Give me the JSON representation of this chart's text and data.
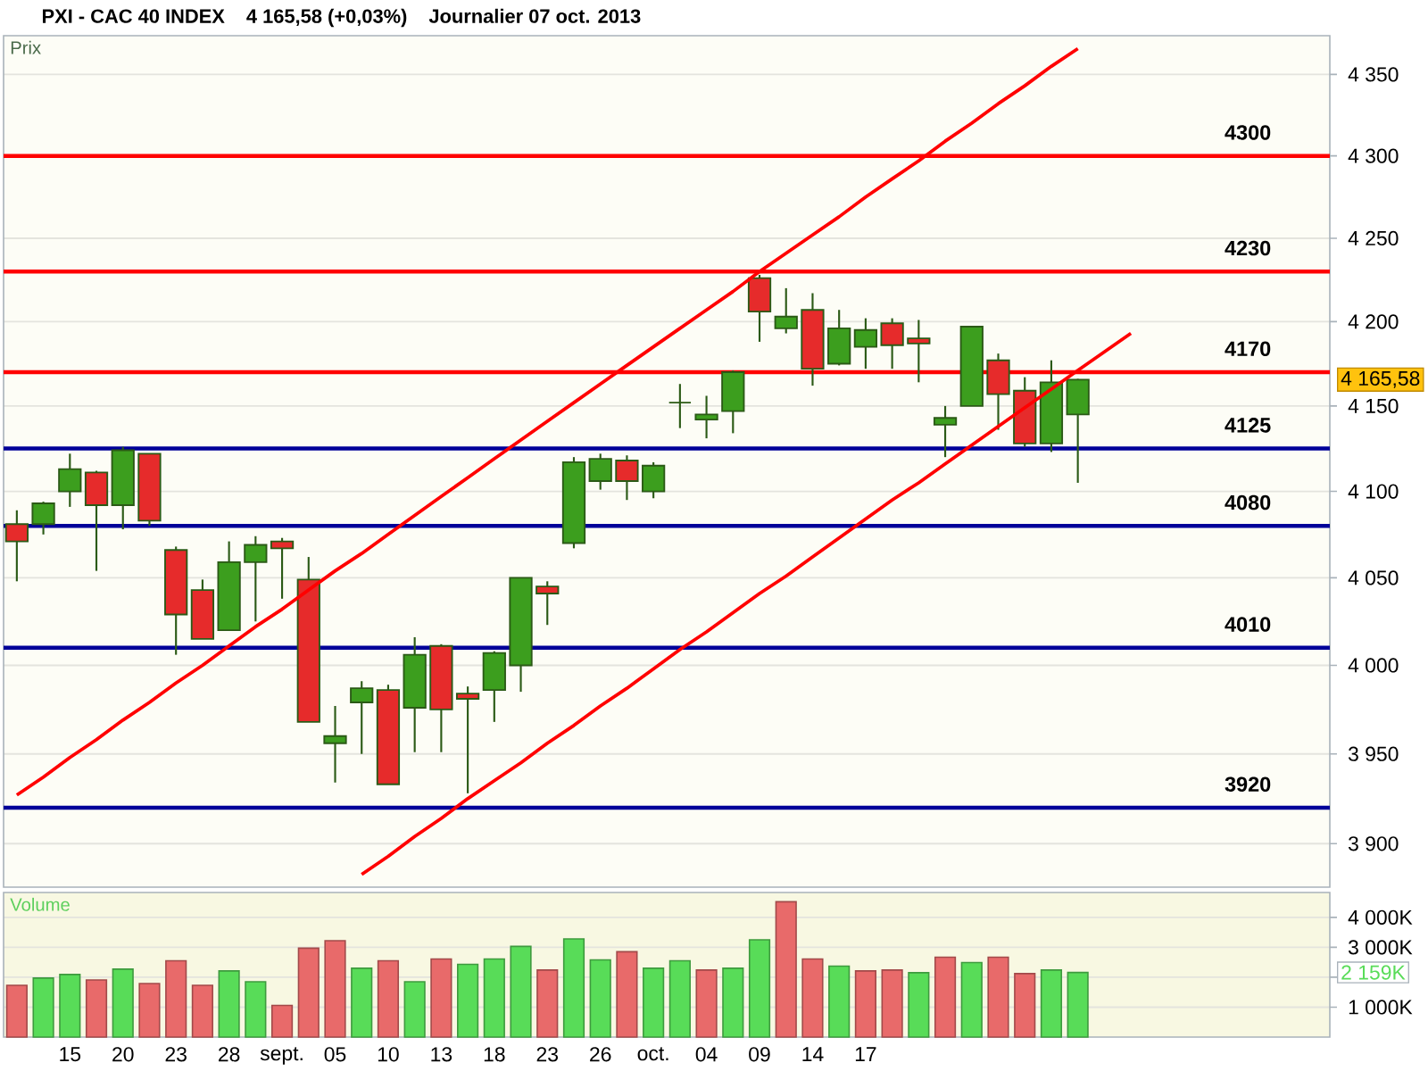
{
  "chart_data": [
    {
      "type": "candlestick",
      "title": "PXI - CAC 40 INDEX",
      "ylabel": "Prix",
      "annotations": [
        "4 165,58 (+0,03%)",
        "Journalier 07 oct. 2013",
        "4 165,58"
      ],
      "categories": [
        null,
        null,
        null,
        null,
        null,
        null,
        null,
        null,
        null,
        null,
        null,
        null,
        null,
        null,
        null,
        null,
        null,
        null,
        null,
        null,
        null,
        null,
        null,
        null,
        null,
        null,
        null,
        null,
        null,
        null,
        null,
        null,
        null,
        null,
        null,
        null,
        null,
        null,
        null,
        null,
        null,
        null,
        null,
        null,
        null,
        null,
        null,
        null,
        null,
        null
      ],
      "ohlc": [
        [
          4081,
          4089,
          4048,
          4071
        ],
        [
          4081,
          4094,
          4075,
          4093
        ],
        [
          4100,
          4122,
          4091,
          4113
        ],
        [
          4111,
          4112,
          4054,
          4092
        ],
        [
          4092,
          4126,
          4078,
          4124
        ],
        [
          4122,
          4122,
          4080,
          4083
        ],
        [
          4066,
          4068,
          4006,
          4029
        ],
        [
          4043,
          4049,
          4015,
          4015
        ],
        [
          4020,
          4071,
          4020,
          4059
        ],
        [
          4059,
          4074,
          4025,
          4069
        ],
        [
          4071,
          4073,
          4038,
          4067
        ],
        [
          4049,
          4062,
          3968,
          3968
        ],
        [
          3956,
          3977,
          3934,
          3960
        ],
        [
          3979,
          3991,
          3950,
          3987
        ],
        [
          3986,
          3989,
          3933,
          3933
        ],
        [
          3976,
          4016,
          3951,
          4006
        ],
        [
          4011,
          4012,
          3951,
          3975
        ],
        [
          3984,
          3988,
          3928,
          3981
        ],
        [
          3986,
          4008,
          3968,
          4007
        ],
        [
          4000,
          4050,
          3985,
          4050
        ],
        [
          4045,
          4048,
          4023,
          4041
        ],
        [
          4070,
          4120,
          4067,
          4117
        ],
        [
          4106,
          4122,
          4101,
          4119
        ],
        [
          4118,
          4121,
          4095,
          4106
        ],
        [
          4100,
          4117,
          4096,
          4115
        ],
        [
          4152,
          4163,
          4137,
          4152
        ],
        [
          4142,
          4156,
          4131,
          4145
        ],
        [
          4147,
          4171,
          4134,
          4170
        ],
        [
          4226,
          4228,
          4188,
          4206
        ],
        [
          4196,
          4220,
          4193,
          4203
        ],
        [
          4207,
          4217,
          4162,
          4172
        ],
        [
          4175,
          4207,
          4174,
          4196
        ],
        [
          4185,
          4202,
          4172,
          4195
        ],
        [
          4199,
          4202,
          4172,
          4186
        ],
        [
          4190,
          4201,
          4164,
          4187
        ],
        [
          4139,
          4150,
          4120,
          4143
        ],
        [
          4150,
          4197,
          4150,
          4197
        ],
        [
          4177,
          4181,
          4136,
          4157
        ],
        [
          4159,
          4167,
          4126,
          4128
        ],
        [
          4128,
          4177,
          4123,
          4164
        ],
        [
          4145,
          4166,
          4105,
          4165.58
        ],
        null,
        null,
        null,
        null,
        null,
        null,
        null,
        null,
        null
      ],
      "colors": [
        "#E62B2B",
        "#3C9E1E",
        "#3C9E1E",
        "#E62B2B",
        "#3C9E1E",
        "#E62B2B",
        "#E62B2B",
        "#E62B2B",
        "#3C9E1E",
        "#3C9E1E",
        "#E62B2B",
        "#E62B2B",
        "#3C9E1E",
        "#3C9E1E",
        "#E62B2B",
        "#3C9E1E",
        "#E62B2B",
        "#E62B2B",
        "#3C9E1E",
        "#3C9E1E",
        "#E62B2B",
        "#3C9E1E",
        "#3C9E1E",
        "#E62B2B",
        "#3C9E1E",
        "#2B5A16",
        "#3C9E1E",
        "#3C9E1E",
        "#E62B2B",
        "#3C9E1E",
        "#E62B2B",
        "#3C9E1E",
        "#3C9E1E",
        "#E62B2B",
        "#E62B2B",
        "#3C9E1E",
        "#3C9E1E",
        "#E62B2B",
        "#E62B2B",
        "#3C9E1E",
        "#3C9E1E",
        null,
        null,
        null,
        null,
        null,
        null,
        null,
        null,
        null
      ],
      "series": [
        {
          "type": "line",
          "color": "#FF0000",
          "values": [
            3927,
            3937,
            3948,
            3958,
            3969,
            3979,
            3990,
            4000,
            4011,
            4022,
            4032,
            4043,
            4054,
            4064,
            4075,
            4086,
            4097,
            4108,
            4119,
            4130,
            4141,
            4152,
            4163,
            4174,
            4185,
            4196,
            4207,
            4218,
            4230,
            4241,
            4252,
            4263,
            4275,
            4286,
            4297,
            4309,
            4320,
            4332,
            4343,
            4355,
            4366,
            null,
            null,
            null,
            null,
            null,
            null,
            null,
            null,
            null
          ]
        },
        {
          "type": "line",
          "color": "#FF0000",
          "values": [
            null,
            null,
            null,
            null,
            null,
            null,
            null,
            null,
            null,
            null,
            null,
            null,
            null,
            3883,
            3893,
            3904,
            3914,
            3925,
            3935,
            3945,
            3956,
            3966,
            3977,
            3987,
            3998,
            4009,
            4019,
            4030,
            4041,
            4051,
            4062,
            4073,
            4084,
            4095,
            4105,
            4116,
            4127,
            4138,
            4149,
            4160,
            4171,
            4182,
            4193,
            null,
            null,
            null,
            null,
            null,
            null,
            null
          ]
        }
      ],
      "ylim": [
        3876,
        4374
      ],
      "yticks": [
        {
          "value": 3900,
          "label": "3 900"
        },
        {
          "value": 3950,
          "label": "3 950"
        },
        {
          "value": 4000,
          "label": "4 000"
        },
        {
          "value": 4050,
          "label": "4 050"
        },
        {
          "value": 4100,
          "label": "4 100"
        },
        {
          "value": 4150,
          "label": "4 150"
        },
        {
          "value": 4200,
          "label": "4 200"
        },
        {
          "value": 4250,
          "label": "4 250"
        },
        {
          "value": 4300,
          "label": "4 300"
        },
        {
          "value": 4350,
          "label": "4 350"
        }
      ],
      "log": true,
      "grid": "y",
      "tick_labels": "y",
      "ref_lines": [
        {
          "axis": "y",
          "value": 4300,
          "label": "4300",
          "color": "#FF0000"
        },
        {
          "axis": "y",
          "value": 4230,
          "label": "4230",
          "color": "#FF0000"
        },
        {
          "axis": "y",
          "value": 4170,
          "label": "4170",
          "color": "#FF0000"
        },
        {
          "axis": "y",
          "value": 4125,
          "label": "4125",
          "color": "#000099"
        },
        {
          "axis": "y",
          "value": 4080,
          "label": "4080",
          "color": "#000099"
        },
        {
          "axis": "y",
          "value": 4010,
          "label": "4010",
          "color": "#000099"
        },
        {
          "axis": "y",
          "value": 3920,
          "label": "3920",
          "color": "#000099"
        }
      ]
    },
    {
      "type": "bar",
      "ylabel": "Volume",
      "categories": [
        null,
        null,
        "15",
        null,
        "20",
        null,
        "23",
        null,
        "28",
        null,
        "sept.",
        null,
        "05",
        null,
        "10",
        null,
        "13",
        null,
        "18",
        null,
        "23",
        null,
        "26",
        null,
        "oct.",
        null,
        "04",
        null,
        "09",
        null,
        "14",
        null,
        "17",
        null,
        null,
        null,
        null,
        null,
        null,
        null,
        null,
        null,
        null,
        null,
        null,
        null,
        null,
        null,
        null,
        null
      ],
      "values": [
        1730,
        1970,
        2090,
        1910,
        2270,
        1790,
        2550,
        1730,
        2210,
        1850,
        1060,
        2970,
        3220,
        2300,
        2550,
        1850,
        2610,
        2430,
        2610,
        3030,
        2240,
        3280,
        2580,
        2850,
        2300,
        2550,
        2240,
        2300,
        3250,
        4520,
        2610,
        2370,
        2210,
        2240,
        2150,
        2670,
        2490,
        2670,
        2120,
        2240,
        2159,
        null,
        null,
        null,
        null,
        null,
        null,
        null,
        null,
        null
      ],
      "colors": [
        "#E86A6A",
        "#58DC58",
        "#58DC58",
        "#E86A6A",
        "#58DC58",
        "#E86A6A",
        "#E86A6A",
        "#E86A6A",
        "#58DC58",
        "#58DC58",
        "#E86A6A",
        "#E86A6A",
        "#E86A6A",
        "#58DC58",
        "#E86A6A",
        "#58DC58",
        "#E86A6A",
        "#58DC58",
        "#58DC58",
        "#58DC58",
        "#E86A6A",
        "#58DC58",
        "#58DC58",
        "#E86A6A",
        "#58DC58",
        "#58DC58",
        "#E86A6A",
        "#58DC58",
        "#58DC58",
        "#E86A6A",
        "#E86A6A",
        "#58DC58",
        "#E86A6A",
        "#E86A6A",
        "#58DC58",
        "#E86A6A",
        "#58DC58",
        "#E86A6A",
        "#E86A6A",
        "#58DC58",
        "#58DC58",
        null,
        null,
        null,
        null,
        null,
        null,
        null,
        null,
        null
      ],
      "ylim": [
        0,
        4830
      ],
      "yticks": [
        {
          "value": 1000,
          "label": "1 000K"
        },
        {
          "value": 2000,
          "label": null
        },
        {
          "value": 3000,
          "label": "3 000K"
        },
        {
          "value": 4000,
          "label": "4 000K"
        }
      ],
      "grid": "y",
      "annotations": [
        "2 159K"
      ]
    }
  ]
}
